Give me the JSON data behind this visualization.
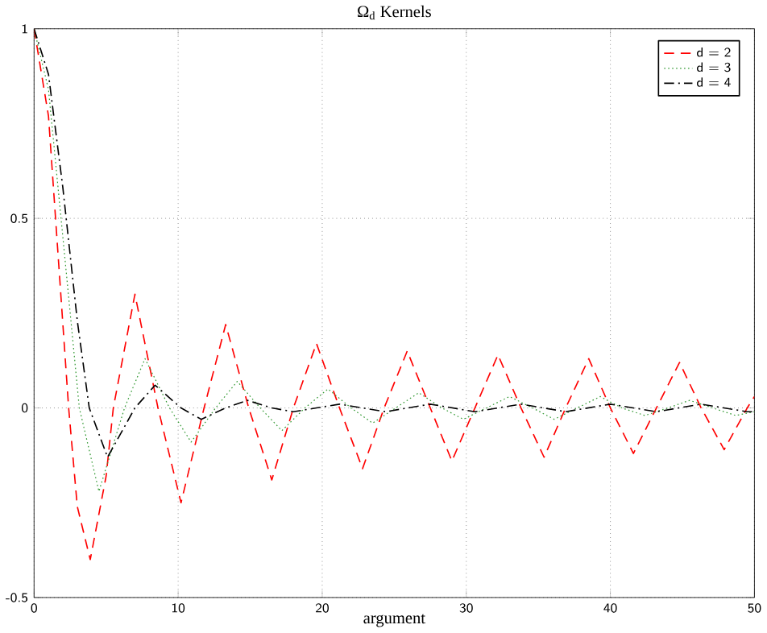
{
  "chart_data": {
    "type": "line",
    "title": "Ω$_{d}$ Kernels",
    "xlabel": "argument",
    "xlim": [
      0,
      50
    ],
    "ylim": [
      -0.5,
      1
    ],
    "xticks": [
      0,
      10,
      20,
      30,
      40,
      50
    ],
    "yticks": [
      -0.5,
      0,
      0.5,
      1
    ],
    "grid": true,
    "legend": "top right",
    "series": [
      {
        "name": "d = 2",
        "color": "#ff0000",
        "line_style": "dashed",
        "x": [
          0,
          1,
          2,
          2.4,
          3,
          3.9,
          5,
          5.5,
          7,
          8.6,
          10.2,
          11.8,
          13.3,
          14.9,
          16.5,
          18,
          19.6,
          21.2,
          22.8,
          24.3,
          25.9,
          27.5,
          29,
          30.6,
          32.2,
          33.8,
          35.4,
          36.9,
          38.5,
          40,
          41.6,
          43.2,
          44.8,
          46.3,
          47.9,
          49.5,
          50
        ],
        "values": [
          1,
          0.77,
          0.22,
          0,
          -0.26,
          -0.4,
          -0.18,
          0,
          0.3,
          0,
          -0.25,
          0,
          0.22,
          0,
          -0.19,
          0,
          0.17,
          0,
          -0.16,
          0,
          0.15,
          0,
          -0.14,
          0,
          0.14,
          0,
          -0.13,
          0,
          0.13,
          0,
          -0.12,
          0,
          0.12,
          0,
          -0.11,
          0,
          0.03
        ]
      },
      {
        "name": "d = 3",
        "color": "#339933",
        "line_style": "dotted",
        "x": [
          0,
          1,
          2,
          3.14,
          4.5,
          6.28,
          7.7,
          9.4,
          10.9,
          12.6,
          14.1,
          15.7,
          17.2,
          18.8,
          20.4,
          22,
          23.5,
          25.1,
          26.7,
          28.3,
          29.8,
          31.4,
          33,
          34.6,
          36.1,
          37.7,
          39.3,
          40.8,
          42.4,
          44,
          45.5,
          47.1,
          48.7,
          50
        ],
        "values": [
          1,
          0.84,
          0.45,
          0,
          -0.22,
          0,
          0.13,
          0,
          -0.09,
          0,
          0.07,
          0,
          -0.06,
          0,
          0.05,
          0,
          -0.04,
          0,
          0.04,
          0,
          -0.03,
          0,
          0.03,
          0,
          -0.03,
          0,
          0.03,
          0,
          -0.02,
          0,
          0.02,
          0,
          -0.02,
          -0.01
        ]
      },
      {
        "name": "d = 4",
        "color": "#000000",
        "line_style": "dashdot",
        "x": [
          0,
          1,
          2,
          3,
          3.83,
          5.1,
          7,
          8.4,
          10.2,
          11.6,
          13.3,
          14.8,
          16.5,
          18,
          19.6,
          21.2,
          24.4,
          27.5,
          30.6,
          33.8,
          36.9,
          40,
          43.2,
          46.3,
          49.5,
          50
        ],
        "values": [
          1,
          0.88,
          0.58,
          0.23,
          0,
          -0.13,
          0,
          0.06,
          0,
          -0.03,
          0,
          0.02,
          0,
          -0.01,
          0,
          0.01,
          -0.01,
          0.01,
          -0.01,
          0.01,
          -0.01,
          0.01,
          -0.01,
          0.01,
          -0.01,
          -0.01
        ]
      }
    ]
  }
}
